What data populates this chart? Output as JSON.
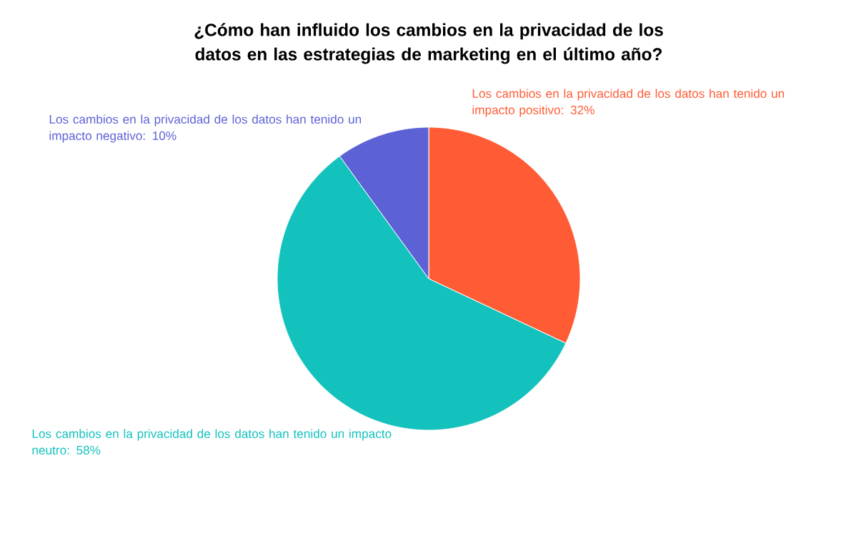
{
  "chart_data": {
    "type": "pie",
    "title": "¿Cómo han influido los cambios en la privacidad de los datos en las estrategias de marketing en el último año?",
    "categories": [
      "Los cambios en la privacidad de los datos han tenido un impacto positivo: 32%",
      "Los cambios en la privacidad de los datos han tenido un impacto neutro: 58%",
      "Los cambios en la privacidad de los datos han tenido un impacto negativo: 10%"
    ],
    "values": [
      32,
      58,
      10
    ],
    "colors": [
      "#ff5c35",
      "#13c2bd",
      "#5c62d6"
    ]
  }
}
